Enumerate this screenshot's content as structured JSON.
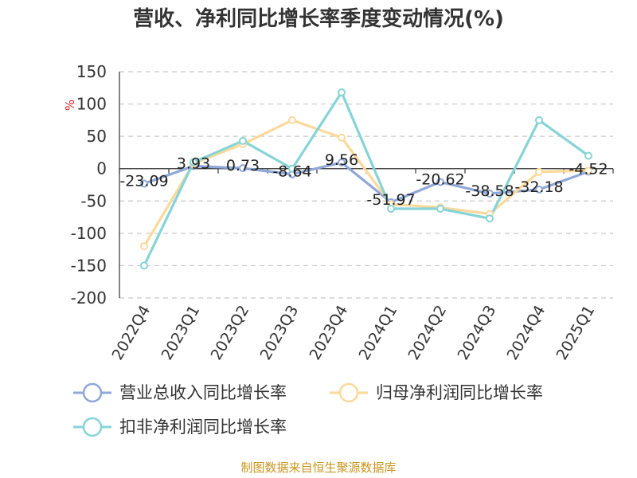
{
  "chart_data": {
    "type": "line",
    "title": "营收、净利同比增长率季度变动情况(%)",
    "ylabel": "%",
    "xlabel": "",
    "categories": [
      "2022Q4",
      "2023Q1",
      "2023Q2",
      "2023Q3",
      "2023Q4",
      "2024Q1",
      "2024Q2",
      "2024Q3",
      "2024Q4",
      "2025Q1"
    ],
    "ylim": [
      -200,
      150
    ],
    "yticks": [
      "150",
      "100",
      "50",
      "0",
      "-50",
      "-100",
      "-150",
      "-200"
    ],
    "ytick_values": [
      150,
      100,
      50,
      0,
      -50,
      -100,
      -150,
      -200
    ],
    "grid": true,
    "legend_position": "bottom",
    "series": [
      {
        "name": "营业总收入同比增长率",
        "color": "#8fa8d8",
        "values": [
          -23.09,
          3.93,
          0.73,
          -8.64,
          9.56,
          -51.97,
          -20.62,
          -38.58,
          -32.18,
          -4.52
        ],
        "labels": [
          "-23.09",
          "3.93",
          "0.73",
          "-8.64",
          "9.56",
          "-51.97",
          "-20.62",
          "-38.58",
          "-32.18",
          "-4.52"
        ]
      },
      {
        "name": "归母净利润同比增长率",
        "color": "#fbd99a",
        "values": [
          -120,
          8,
          38,
          75,
          48,
          -55,
          -60,
          -70,
          -5,
          -3
        ]
      },
      {
        "name": "扣非净利润同比增长率",
        "color": "#86d4d8",
        "values": [
          -150,
          10,
          43,
          0,
          118,
          -62,
          -62,
          -77,
          75,
          20
        ]
      }
    ],
    "source": "制图数据来自恒生聚源数据库"
  }
}
